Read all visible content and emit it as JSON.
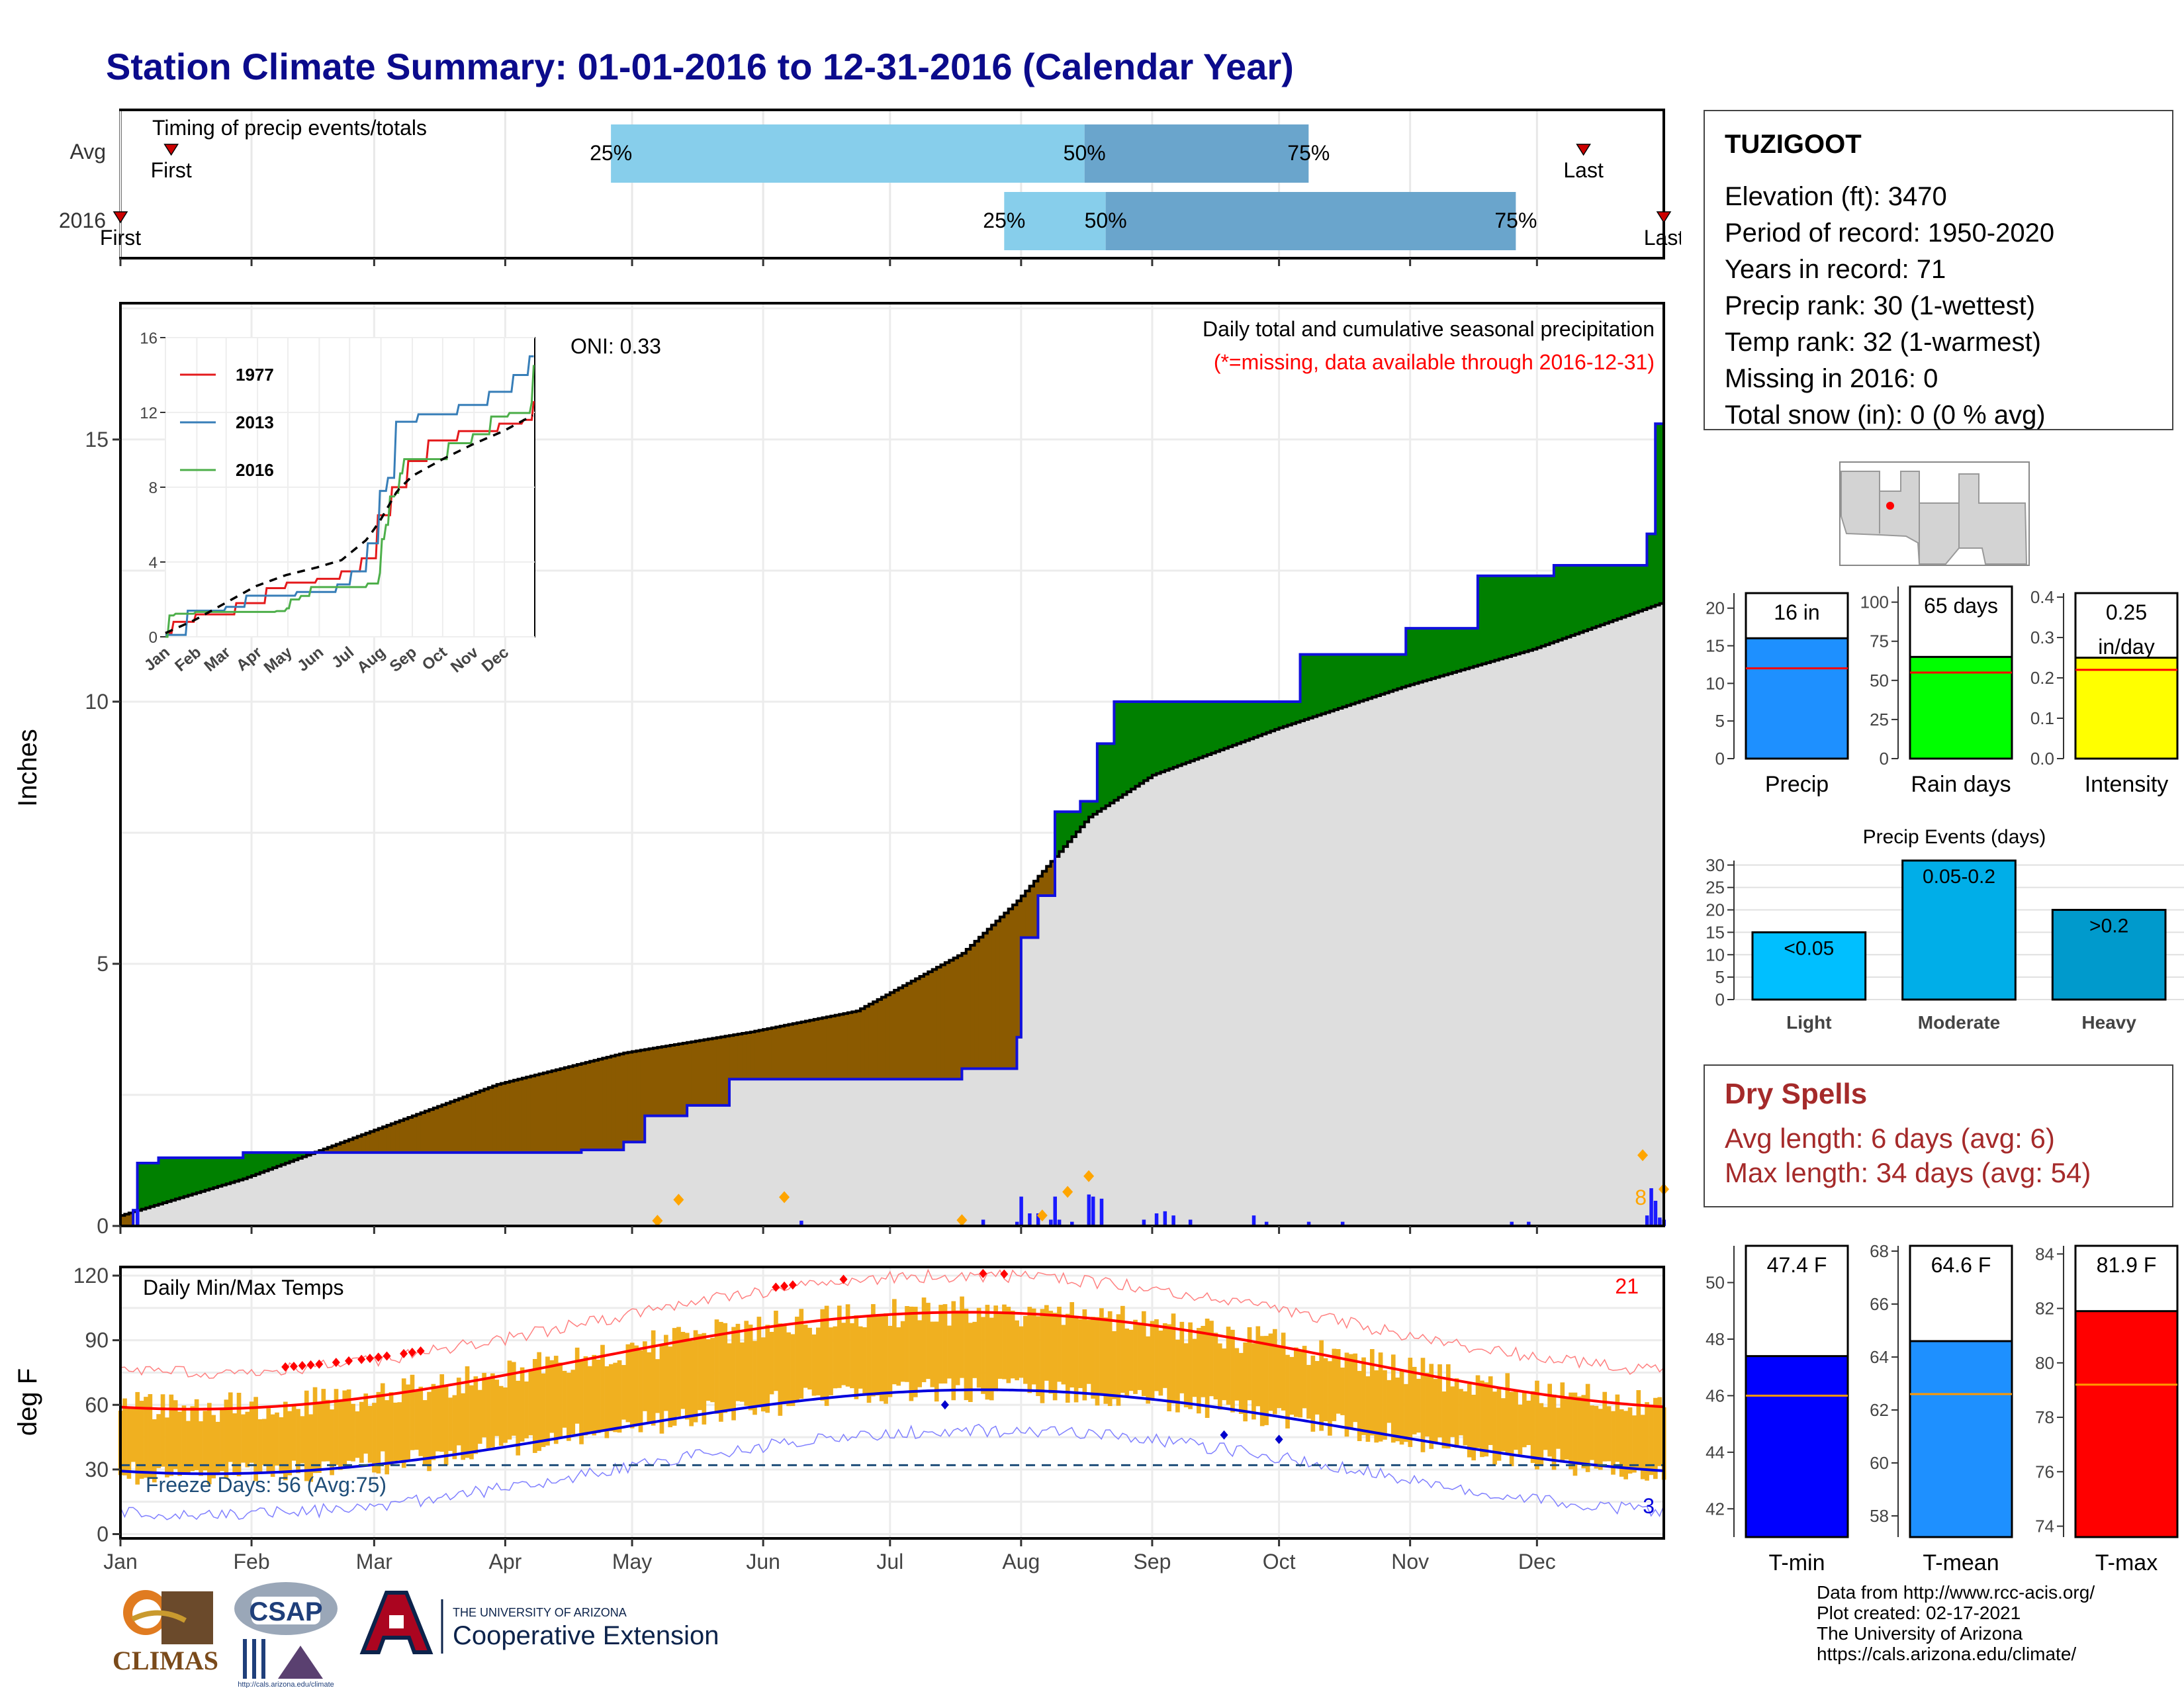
{
  "page": {
    "title": "Station Climate Summary: 01-01-2016 to 12-31-2016 (Calendar Year)"
  },
  "timing": {
    "label": "Timing of precip events/totals",
    "rows": [
      {
        "row_label": "Avg",
        "first_day": 13,
        "p25_day": 117,
        "p50_day": 229,
        "p75_day": 282,
        "last_day": 347,
        "first_label": "First",
        "last_label": "Last"
      },
      {
        "row_label": "2016",
        "first_day": 1,
        "p25_day": 210,
        "p50_day": 234,
        "p75_day": 331,
        "last_day": 366,
        "first_label": "First",
        "last_label": "Last"
      }
    ],
    "pct_labels": [
      "25%",
      "50%",
      "75%"
    ],
    "colors": {
      "q1": "#87ceeb",
      "q2": "#6aa5cc",
      "marker": "#cc0000"
    }
  },
  "precip_panel": {
    "ylabel": "Inches",
    "yticks": [
      0,
      5,
      10,
      15
    ],
    "ylim": [
      0,
      17.6
    ],
    "oni_label": "ONI: 0.33",
    "caption": "Daily total and cumulative seasonal precipitation",
    "missing_note": "(*=missing, data available through 2016-12-31)",
    "corner_value": "8",
    "colors": {
      "above": "#008000",
      "below": "#8b5a00",
      "normal_fill": "#dedede",
      "observed_line": "#1010dd",
      "daily_bar": "#1a1aff",
      "extreme_marker": "#ffa500"
    }
  },
  "inset": {
    "yticks": [
      0,
      4,
      8,
      12,
      16
    ],
    "months": [
      "Jan",
      "Feb",
      "Mar",
      "Apr",
      "May",
      "Jun",
      "Jul",
      "Aug",
      "Sep",
      "Oct",
      "Nov",
      "Dec"
    ],
    "legend": [
      {
        "name": "1977",
        "color": "#e41a1c"
      },
      {
        "name": "2013",
        "color": "#377eb8"
      },
      {
        "name": "2016",
        "color": "#4daf4a"
      }
    ]
  },
  "temp_panel": {
    "ylabel": "deg F",
    "title": "Daily Min/Max Temps",
    "yticks": [
      0,
      30,
      60,
      90,
      120
    ],
    "freeze_label": "Freeze Days: 56 (Avg:75)",
    "hot_count": "21",
    "cold_count": "3",
    "colors": {
      "bars": "#f0b020",
      "max_avg": "#ff0000",
      "min_avg": "#0000dd",
      "freeze_line": "#1f4e79"
    }
  },
  "x_months": [
    "Jan",
    "Feb",
    "Mar",
    "Apr",
    "May",
    "Jun",
    "Jul",
    "Aug",
    "Sep",
    "Oct",
    "Nov",
    "Dec"
  ],
  "station": {
    "name": "TUZIGOOT",
    "lines": [
      "Elevation (ft): 3470",
      "Period of record: 1950-2020",
      "Years in record: 71",
      "Precip rank: 30 (1-wettest)",
      "Temp rank: 32 (1-warmest)",
      "Missing in 2016: 0",
      "Total snow (in): 0 (0 % avg)"
    ]
  },
  "chart_data": [
    {
      "type": "bar",
      "title": "Precip",
      "categories": [
        "Precip"
      ],
      "values": [
        16
      ],
      "value_label": "16 in",
      "average": 12,
      "yticks": [
        0,
        5,
        10,
        15,
        20
      ],
      "ylim": [
        0,
        22
      ],
      "color": "#1e90ff"
    },
    {
      "type": "bar",
      "title": "Rain days",
      "categories": [
        "Rain days"
      ],
      "values": [
        65
      ],
      "value_label": "65 days",
      "average": 55,
      "yticks": [
        0,
        25,
        50,
        75,
        100
      ],
      "ylim": [
        0,
        110
      ],
      "color": "#00ff00"
    },
    {
      "type": "bar",
      "title": "Intensity",
      "categories": [
        "Intensity"
      ],
      "values": [
        0.25
      ],
      "value_label_1": "0.25",
      "value_label_2": "in/day",
      "average": 0.22,
      "yticks": [
        "0.0",
        "0.1",
        "0.2",
        "0.3",
        "0.4"
      ],
      "ylim": [
        0,
        0.41
      ],
      "color": "#ffff00"
    },
    {
      "type": "bar",
      "title": "Precip Events (days)",
      "categories": [
        "Light",
        "Moderate",
        "Heavy"
      ],
      "values": [
        15,
        31,
        20
      ],
      "bar_labels": [
        "<0.05",
        "0.05-0.2",
        ">0.2"
      ],
      "yticks": [
        0,
        5,
        10,
        15,
        20,
        25,
        30
      ],
      "ylim": [
        0,
        31
      ],
      "colors": [
        "#00bfff",
        "#00aee8",
        "#009acc"
      ]
    },
    {
      "type": "bar",
      "title": "T-min",
      "categories": [
        "T-min"
      ],
      "values": [
        47.4
      ],
      "value_label": "47.4 F",
      "average": 46,
      "yticks": [
        42,
        44,
        46,
        48,
        50
      ],
      "ylim": [
        41,
        51.3
      ],
      "color": "#0000ff"
    },
    {
      "type": "bar",
      "title": "T-mean",
      "categories": [
        "T-mean"
      ],
      "values": [
        64.6
      ],
      "value_label": "64.6 F",
      "average": 62.6,
      "yticks": [
        58,
        60,
        62,
        64,
        66,
        68
      ],
      "ylim": [
        57.2,
        68.2
      ],
      "color": "#1e90ff"
    },
    {
      "type": "bar",
      "title": "T-max",
      "categories": [
        "T-max"
      ],
      "values": [
        81.9
      ],
      "value_label": "81.9 F",
      "average": 79.2,
      "yticks": [
        74,
        76,
        78,
        80,
        82,
        84
      ],
      "ylim": [
        73.6,
        84.3
      ],
      "color": "#ff0000"
    }
  ],
  "dry_spells": {
    "title": "Dry Spells",
    "avg_line": "Avg length: 6 days (avg: 6)",
    "max_line": "Max length: 34 days (avg: 54)"
  },
  "logos": {
    "climas": "CLIMAS",
    "csap": "CSAP",
    "csap_url": "http://cals.arizona.edu/climate",
    "ua_small": "THE UNIVERSITY OF ARIZONA",
    "ua_big": "Cooperative Extension"
  },
  "credits": [
    "Data from http://www.rcc-acis.org/",
    "Plot created: 02-17-2021",
    "The University of Arizona",
    "https://cals.arizona.edu/climate/"
  ]
}
